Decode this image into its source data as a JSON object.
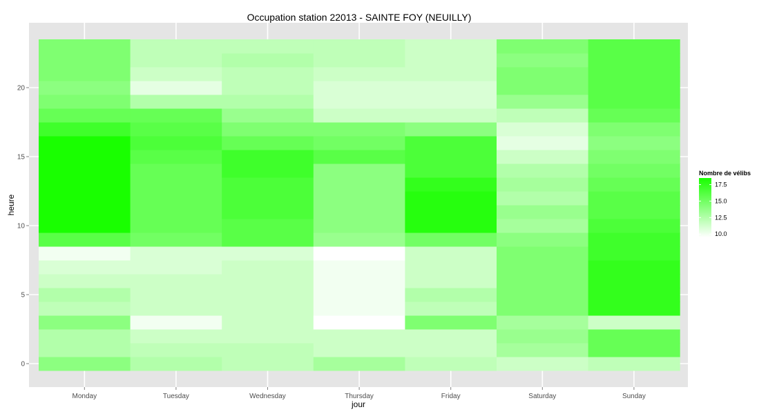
{
  "chart_data": {
    "type": "heatmap",
    "title": "Occupation station 22013 - SAINTE FOY (NEUILLY)",
    "xlabel": "jour",
    "ylabel": "heure",
    "x_categories": [
      "Monday",
      "Tuesday",
      "Wednesday",
      "Thursday",
      "Friday",
      "Saturday",
      "Sunday"
    ],
    "y_hours": [
      0,
      1,
      2,
      3,
      4,
      5,
      6,
      7,
      8,
      9,
      10,
      11,
      12,
      13,
      14,
      15,
      16,
      17,
      18,
      19,
      20,
      21,
      22,
      23
    ],
    "y_ticks": [
      0,
      5,
      10,
      15,
      20
    ],
    "ylim": [
      -0.5,
      23.5
    ],
    "values": [
      [
        14.0,
        12.5,
        12.0,
        13.0,
        12.0,
        11.5,
        12.0
      ],
      [
        12.5,
        12.0,
        12.0,
        11.5,
        11.5,
        13.0,
        15.5
      ],
      [
        12.5,
        11.5,
        11.5,
        11.5,
        11.5,
        13.5,
        15.5
      ],
      [
        14.0,
        10.0,
        11.5,
        9.5,
        14.5,
        13.0,
        11.5
      ],
      [
        12.0,
        11.5,
        11.5,
        10.0,
        12.0,
        14.5,
        17.5
      ],
      [
        12.5,
        11.5,
        11.5,
        10.0,
        12.5,
        14.5,
        17.5
      ],
      [
        11.5,
        11.5,
        11.5,
        10.0,
        11.5,
        14.5,
        17.5
      ],
      [
        11.0,
        11.0,
        11.5,
        10.0,
        11.5,
        14.5,
        17.5
      ],
      [
        10.0,
        11.0,
        11.0,
        9.5,
        11.5,
        14.5,
        17.0
      ],
      [
        16.0,
        15.0,
        16.0,
        13.5,
        15.0,
        14.0,
        17.0
      ],
      [
        18.5,
        15.5,
        16.0,
        14.0,
        18.0,
        13.0,
        16.5
      ],
      [
        18.5,
        15.5,
        16.5,
        14.0,
        18.0,
        13.5,
        16.0
      ],
      [
        18.5,
        15.5,
        16.5,
        14.0,
        18.0,
        12.5,
        16.0
      ],
      [
        18.5,
        15.5,
        16.5,
        14.0,
        17.5,
        13.0,
        15.5
      ],
      [
        18.5,
        15.5,
        17.0,
        14.0,
        16.5,
        12.5,
        15.0
      ],
      [
        18.5,
        16.0,
        17.0,
        16.0,
        16.5,
        11.5,
        14.5
      ],
      [
        18.5,
        16.5,
        15.5,
        15.0,
        16.5,
        10.5,
        14.0
      ],
      [
        17.0,
        16.0,
        14.5,
        14.5,
        14.0,
        11.0,
        14.5
      ],
      [
        15.5,
        15.5,
        13.5,
        11.5,
        11.5,
        12.0,
        15.5
      ],
      [
        14.5,
        12.5,
        12.5,
        11.0,
        11.0,
        13.5,
        16.0
      ],
      [
        14.0,
        10.5,
        12.0,
        11.0,
        11.0,
        14.5,
        16.0
      ],
      [
        14.5,
        11.5,
        12.0,
        11.5,
        11.5,
        14.5,
        16.0
      ],
      [
        14.5,
        12.0,
        12.5,
        12.0,
        11.5,
        14.0,
        16.0
      ],
      [
        14.5,
        12.0,
        12.0,
        12.0,
        11.5,
        14.5,
        16.0
      ]
    ],
    "grid": true,
    "legend": {
      "title": "Nombre de vélibs",
      "position": "right",
      "ticks": [
        "17.5",
        "15.0",
        "12.5",
        "10.0"
      ],
      "tick_values": [
        17.5,
        15.0,
        12.5,
        10.0
      ],
      "range": [
        9.5,
        18.5
      ],
      "color_low": "#ffffff",
      "color_high": "#19ff00"
    },
    "panel_background": "#e5e5e5",
    "grid_color": "#ffffff"
  }
}
